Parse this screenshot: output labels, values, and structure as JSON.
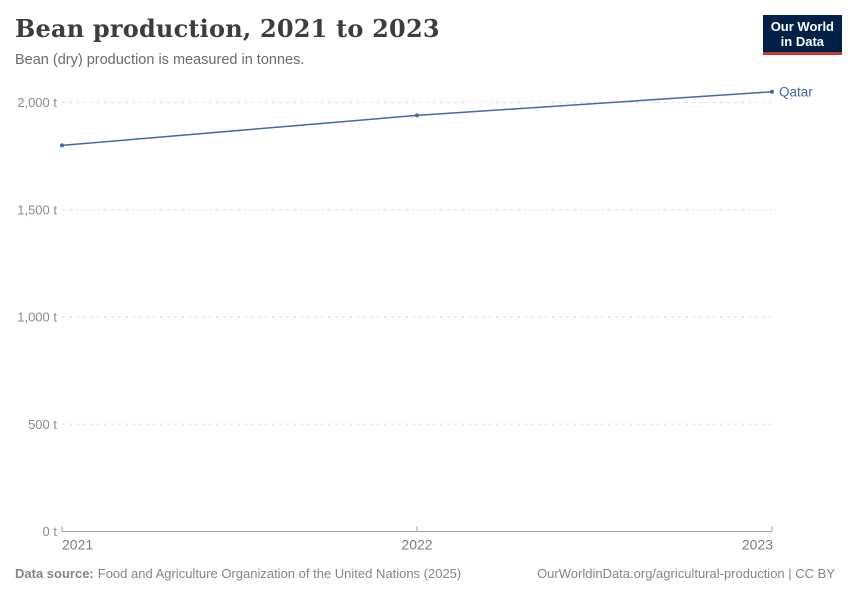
{
  "header": {
    "title": "Bean production, 2021 to 2023",
    "subtitle": "Bean (dry) production is measured in tonnes.",
    "logo": {
      "line1": "Our World",
      "line2": "in Data"
    }
  },
  "chart_data": {
    "type": "line",
    "title": "Bean production, 2021 to 2023",
    "x": [
      2021,
      2022,
      2023
    ],
    "x_tick_labels": [
      "2021",
      "2022",
      "2023"
    ],
    "series": [
      {
        "name": "Qatar",
        "values": [
          1800,
          1940,
          2050
        ],
        "color": "#4268a8"
      }
    ],
    "ylim": [
      0,
      2000
    ],
    "y_ticks": [
      0,
      500,
      1000,
      1500,
      2000
    ],
    "y_tick_labels": [
      "0 t",
      "500 t",
      "1,000 t",
      "1,500 t",
      "2,000 t"
    ],
    "unit": "t",
    "grid": "horizontal dashed",
    "legend_position": "end-of-line label"
  },
  "colors": {
    "line": "#4268a8",
    "grid": "#dddddd",
    "axis": "#a1a1a1",
    "y_tick_text": "#8a8a8a",
    "x_tick_text": "#7d7d7d",
    "logo_bg": "#002147",
    "logo_accent": "#c5392f"
  },
  "footer": {
    "source_label": "Data source:",
    "source_text": "Food and Agriculture Organization of the United Nations (2025)",
    "note": "OurWorldinData.org/agricultural-production | CC BY"
  }
}
